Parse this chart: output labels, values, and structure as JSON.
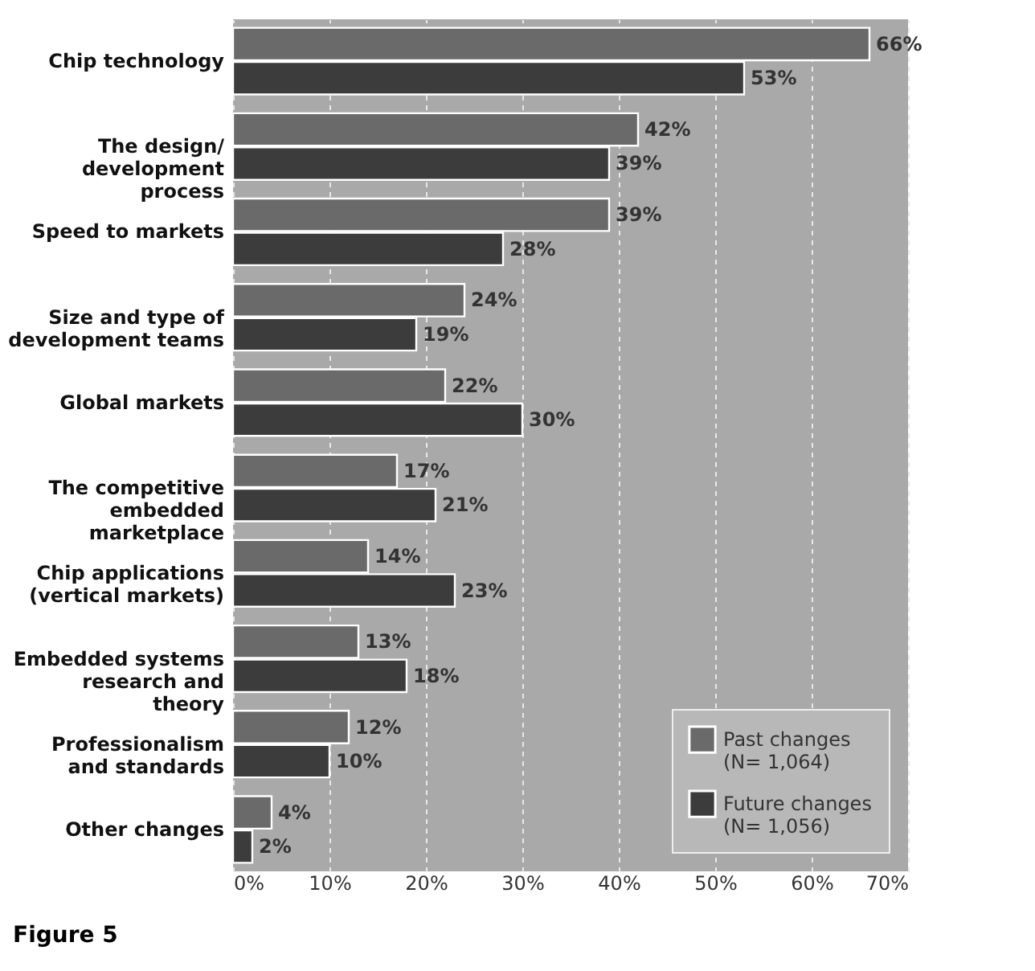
{
  "chart_data": {
    "type": "bar",
    "orientation": "horizontal",
    "categories": [
      "Chip technology",
      "The design/ development process",
      "Speed to markets",
      "Size and type of development teams",
      "Global markets",
      "The competitive embedded marketplace",
      "Chip applications (vertical markets)",
      "Embedded systems research and theory",
      "Professionalism and standards",
      "Other changes"
    ],
    "series": [
      {
        "name": "Past changes (N= 1,064)",
        "color": "#6a6a6a",
        "values": [
          66,
          42,
          39,
          24,
          22,
          17,
          14,
          13,
          12,
          4
        ],
        "value_labels": [
          "66%",
          "42%",
          "39%",
          "24%",
          "22%",
          "17%",
          "14%",
          "13%",
          "12%",
          "4%"
        ]
      },
      {
        "name": "Future changes (N= 1,056)",
        "color": "#3c3c3c",
        "values": [
          53,
          39,
          28,
          19,
          30,
          21,
          23,
          18,
          10,
          2
        ],
        "value_labels": [
          "53%",
          "39%",
          "28%",
          "19%",
          "30%",
          "21%",
          "23%",
          "18%",
          "10%",
          "2%"
        ]
      }
    ],
    "xlim": [
      0,
      70
    ],
    "xticks": [
      {
        "value": 0,
        "label": "0%"
      },
      {
        "value": 10,
        "label": "10%"
      },
      {
        "value": 20,
        "label": "20%"
      },
      {
        "value": 30,
        "label": "30%"
      },
      {
        "value": 40,
        "label": "40%"
      },
      {
        "value": 50,
        "label": "50%"
      },
      {
        "value": 60,
        "label": "60%"
      },
      {
        "value": 70,
        "label": "70%"
      }
    ],
    "grid": "x",
    "legend": "bottom right",
    "annotations": [
      "Figure 5"
    ]
  }
}
